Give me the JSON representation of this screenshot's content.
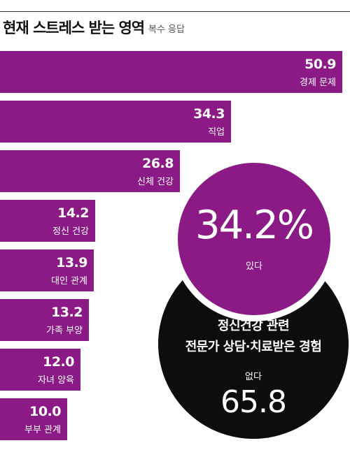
{
  "colors": {
    "purple": "#8b1a86",
    "black": "#0d0d0d"
  },
  "header": {
    "title": "현재 스트레스 받는 영역",
    "subtitle": "복수 응답"
  },
  "chart_data": [
    {
      "type": "bar",
      "orientation": "horizontal",
      "title": "현재 스트레스 받는 영역",
      "subtitle": "복수 응답",
      "categories": [
        "경제 문제",
        "직업",
        "신체 건강",
        "정신 건강",
        "대인 관계",
        "가족 부양",
        "자녀 양육",
        "부부 관계"
      ],
      "values": [
        50.9,
        34.3,
        26.8,
        14.2,
        13.9,
        13.2,
        12.0,
        10.0
      ],
      "value_labels": [
        "50.9",
        "34.3",
        "26.8",
        "14.2",
        "13.9",
        "13.2",
        "12.0",
        "10.0"
      ],
      "xlim": [
        0,
        50.9
      ]
    },
    {
      "type": "pie",
      "title_lines": [
        "정신건강 관련",
        "전문가 상담·치료받은 경험"
      ],
      "categories": [
        "있다",
        "없다"
      ],
      "values": [
        34.2,
        65.8
      ],
      "value_labels": [
        "34.2%",
        "65.8"
      ]
    }
  ]
}
